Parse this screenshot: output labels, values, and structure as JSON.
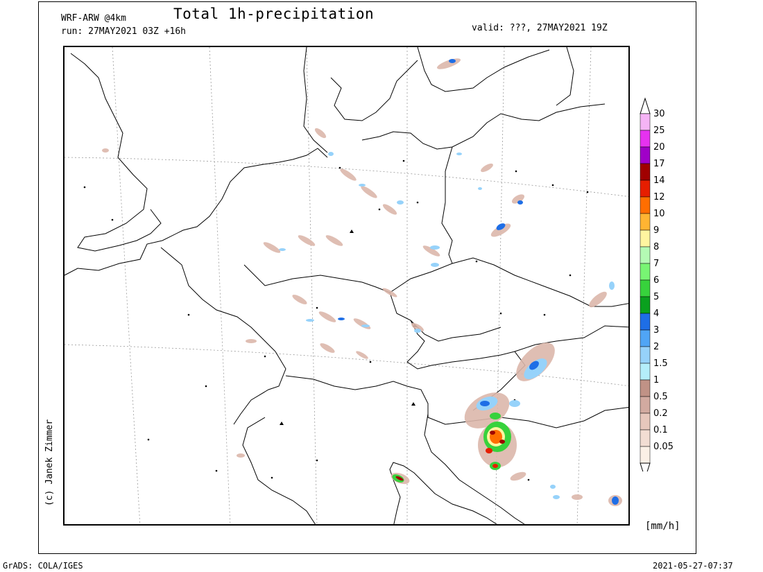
{
  "header": {
    "model": "WRF-ARW @4km",
    "run": "run: 27MAY2021 03Z +16h",
    "title": "Total 1h-precipitation",
    "valid": "valid: ???, 27MAY2021 19Z"
  },
  "credit": "(c) Janek Zimmer",
  "footer": {
    "software": "GrADS: COLA/IGES",
    "timestamp": "2021-05-27-07:37"
  },
  "colorbar": {
    "units": "[mm/h]",
    "levels": [
      {
        "label": "0.05",
        "color": "#fbf0e6"
      },
      {
        "label": "0.1",
        "color": "#f2ddd3"
      },
      {
        "label": "0.2",
        "color": "#e7c7bc"
      },
      {
        "label": "0.5",
        "color": "#d2aaa0"
      },
      {
        "label": "1",
        "color": "#c09286"
      },
      {
        "label": "1.5",
        "color": "#b4eefa"
      },
      {
        "label": "2",
        "color": "#96d2fa"
      },
      {
        "label": "3",
        "color": "#50a5f5"
      },
      {
        "label": "4",
        "color": "#1e6ee6"
      },
      {
        "label": "5",
        "color": "#0aa01e"
      },
      {
        "label": "6",
        "color": "#37d23c"
      },
      {
        "label": "7",
        "color": "#78f573"
      },
      {
        "label": "8",
        "color": "#b4fab4"
      },
      {
        "label": "9",
        "color": "#fff5a0"
      },
      {
        "label": "10",
        "color": "#ffb432"
      },
      {
        "label": "12",
        "color": "#ff6e00"
      },
      {
        "label": "14",
        "color": "#e61e00"
      },
      {
        "label": "17",
        "color": "#a00000"
      },
      {
        "label": "20",
        "color": "#a000c8"
      },
      {
        "label": "25",
        "color": "#e632f0"
      },
      {
        "label": "30",
        "color": "#f5b4f5"
      }
    ]
  },
  "map": {
    "land_outline_color": "#000000",
    "graticule_color": "#999999"
  }
}
